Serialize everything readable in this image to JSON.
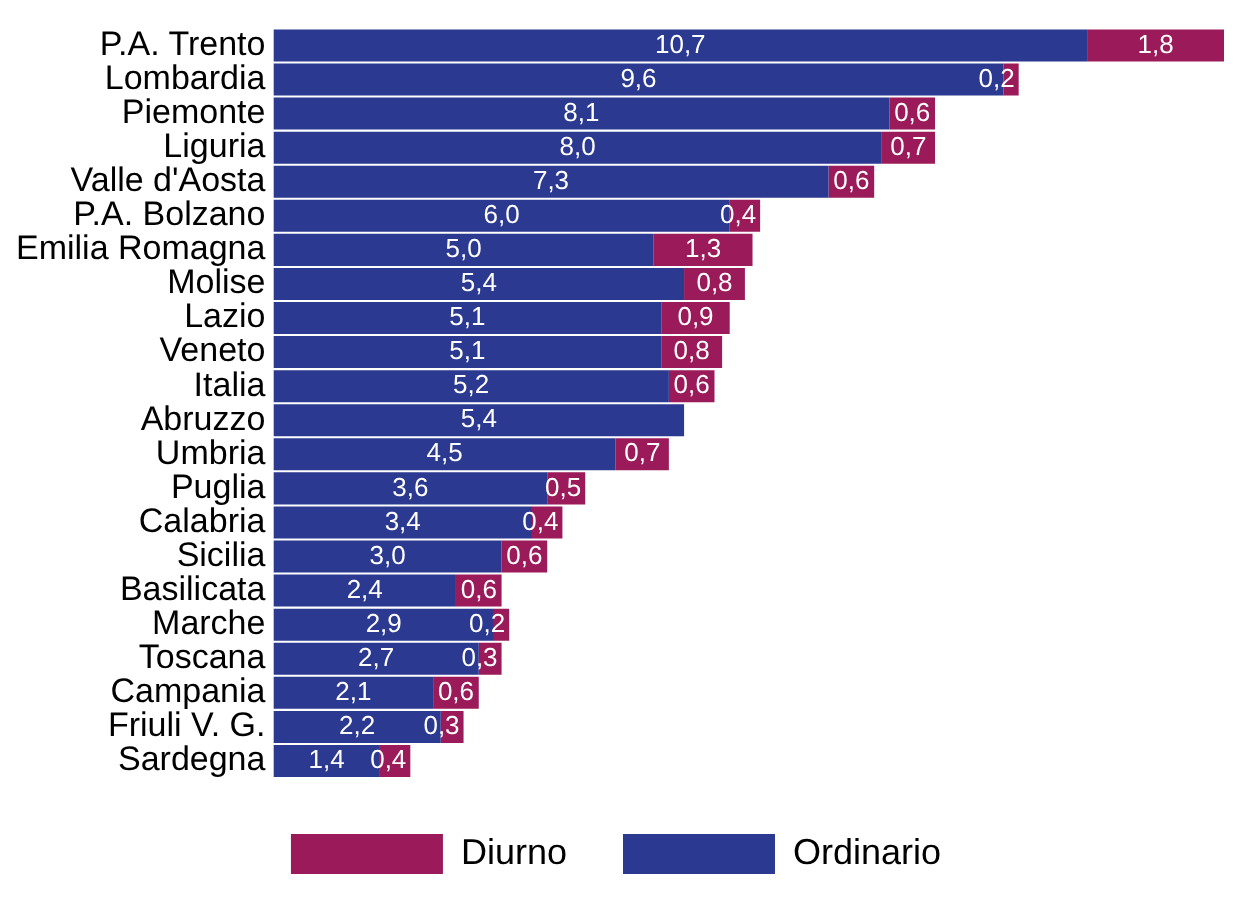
{
  "chart_data": {
    "type": "bar",
    "orientation": "horizontal",
    "stacked": true,
    "legend": "bottom",
    "tick_labels": "y",
    "categories": [
      "P.A. Trento",
      "Lombardia",
      "Piemonte",
      "Liguria",
      "Valle d'Aosta",
      "P.A. Bolzano",
      "Emilia Romagna",
      "Molise",
      "Lazio",
      "Veneto",
      "Italia",
      "Abruzzo",
      "Umbria",
      "Puglia",
      "Calabria",
      "Sicilia",
      "Basilicata",
      "Marche",
      "Toscana",
      "Campania",
      "Friuli V. G.",
      "Sardegna"
    ],
    "series": [
      {
        "name": "Ordinario",
        "color": "#2b3990",
        "values": [
          10.7,
          9.6,
          8.1,
          8.0,
          7.3,
          6.0,
          5.0,
          5.4,
          5.1,
          5.1,
          5.2,
          5.4,
          4.5,
          3.6,
          3.4,
          3.0,
          2.4,
          2.9,
          2.7,
          2.1,
          2.2,
          1.4
        ],
        "value_labels": [
          "10,7",
          "9,6",
          "8,1",
          "8,0",
          "7,3",
          "6,0",
          "5,0",
          "5,4",
          "5,1",
          "5,1",
          "5,2",
          "5,4",
          "4,5",
          "3,6",
          "3,4",
          "3,0",
          "2,4",
          "2,9",
          "2,7",
          "2,1",
          "2,2",
          "1,4"
        ]
      },
      {
        "name": "Diurno",
        "color": "#9b1b5a",
        "values": [
          1.8,
          0.2,
          0.6,
          0.7,
          0.6,
          0.4,
          1.3,
          0.8,
          0.9,
          0.8,
          0.6,
          null,
          0.7,
          0.5,
          0.4,
          0.6,
          0.6,
          0.2,
          0.3,
          0.6,
          0.3,
          0.4
        ],
        "value_labels": [
          "1,8",
          "0,2",
          "0,6",
          "0,7",
          "0,6",
          "0,4",
          "1,3",
          "0,8",
          "0,9",
          "0,8",
          "0,6",
          null,
          "0,7",
          "0,5",
          "0,4",
          "0,6",
          "0,6",
          "0,2",
          "0,3",
          "0,6",
          "0,3",
          "0,4"
        ]
      }
    ]
  }
}
